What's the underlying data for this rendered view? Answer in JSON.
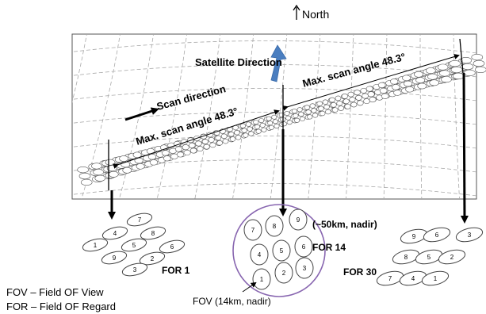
{
  "labels": {
    "north": "North",
    "satellite_direction": "Satellite Direction",
    "scan_direction": "Scan direction",
    "max_scan_left": "Max. scan angle 48.3°",
    "max_scan_right": "Max. scan angle 48.3°",
    "nadir_50km": "(~50km, nadir)",
    "fov_14km": "FOV (14km, nadir)",
    "for1": "FOR 1",
    "for14": "FOR 14",
    "for30": "FOR 30"
  },
  "legend": [
    {
      "text": "FOV – Field OF View"
    },
    {
      "text": "FOR – Field OF Regard"
    }
  ],
  "for1_numbers": [
    "7",
    "4",
    "8",
    "1",
    "5",
    "6",
    "9",
    "2",
    "3"
  ],
  "for14_numbers": [
    "7",
    "8",
    "9",
    "4",
    "5",
    "6",
    "1",
    "2",
    "3"
  ],
  "for30_numbers": [
    "9",
    "6",
    "3",
    "8",
    "5",
    "2",
    "7",
    "4",
    "1"
  ],
  "colors": {
    "satellite_arrow": "#4a7ec0",
    "for14_circle": "#8866b0",
    "grid": "#a9a9a9",
    "panel_border": "#555555"
  }
}
